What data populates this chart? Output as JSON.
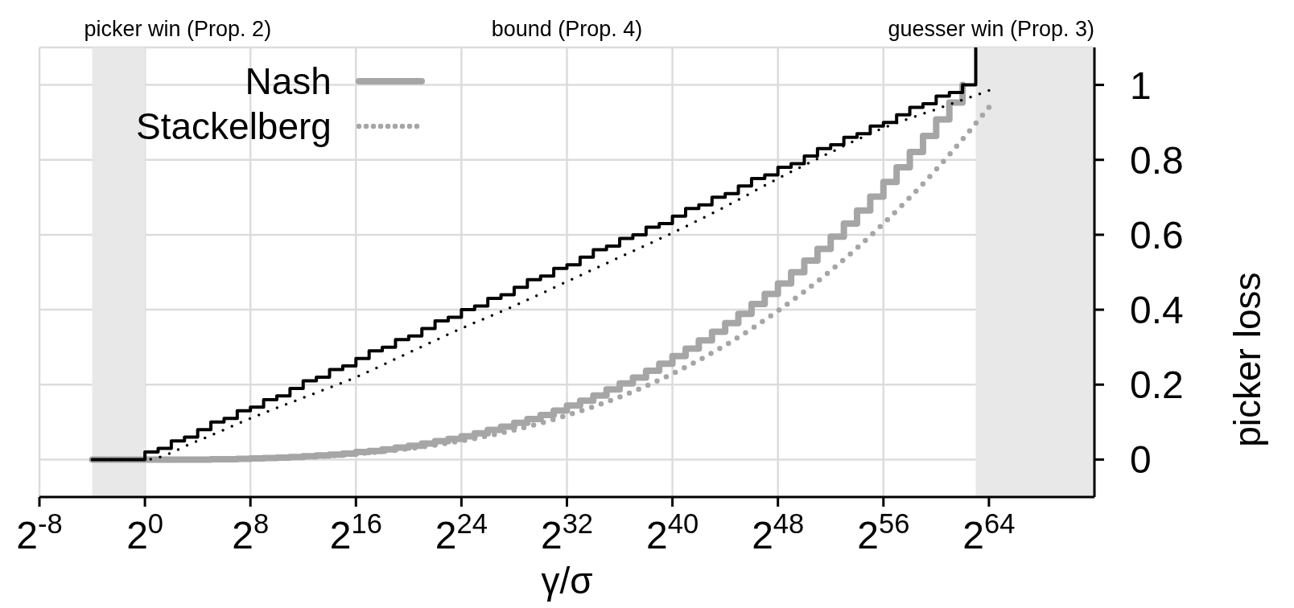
{
  "chart_data": {
    "type": "line",
    "xlabel": "γ/σ",
    "ylabel": "picker loss",
    "log": "x",
    "xlim": [
      0.00390625,
      4.722366482869645e+21
    ],
    "xticks": [
      {
        "value": 0.00390625,
        "label": "2$^{-8}$"
      },
      {
        "value": 1,
        "label": "2$^{0}$"
      },
      {
        "value": 256,
        "label": "2$^{8}$"
      },
      {
        "value": 65536,
        "label": "2$^{16}$"
      },
      {
        "value": 16777216,
        "label": "2$^{24}$"
      },
      {
        "value": 4294967296,
        "label": "2$^{32}$"
      },
      {
        "value": 1099511627776,
        "label": "2$^{40}$"
      },
      {
        "value": 281474976710656,
        "label": "2$^{48}$"
      },
      {
        "value": 7.205759403792794e+16,
        "label": "2$^{56}$"
      },
      {
        "value": 1.8446744073709552e+19,
        "label": "2$^{64}$"
      }
    ],
    "ylim": [
      -0.1,
      1.1
    ],
    "yticks": [
      0,
      0.2,
      0.4,
      0.6,
      0.8,
      1
    ],
    "grid": true,
    "legend": "top left",
    "bands": [
      {
        "axis": "x",
        "from": 0.0625,
        "to": 1,
        "label": "picker win (Prop. 2)",
        "color": "#e8e8e8"
      },
      {
        "axis": "x",
        "from": 9.223372036854776e+18,
        "to": 4.722366482869645e+21,
        "label": "guesser win (Prop. 3)",
        "color": "#e8e8e8"
      }
    ],
    "annotations": [
      "bound (Prop. 4)"
    ],
    "series": [
      {
        "type": "step",
        "color": "#000000",
        "line_style": "solid",
        "x": [
          0.0625,
          1,
          2,
          4,
          8,
          16,
          32,
          64,
          128,
          256,
          512,
          1024,
          2048,
          4096,
          8192,
          16384,
          32768,
          65536,
          131072,
          262144,
          524288,
          1048576,
          2097152,
          4194304,
          8388608,
          16777216,
          33554432,
          67108864,
          134217728,
          268435456,
          536870912,
          1073741824,
          2147483648,
          4294967296,
          8589934592,
          17179869184,
          34359738368,
          68719476736,
          137438953472,
          274877906944,
          549755813888,
          1099511627776,
          2199023255552,
          4398046511104,
          8796093022208,
          17592186044416,
          35184372088832,
          70368744177664,
          140737488355328,
          281474976710656,
          562949953421312,
          1125899906842624,
          2251799813685248,
          4503599627370496,
          9007199254740992,
          1.8014398509481984e+16,
          3.602879701896397e+16,
          7.205759403792794e+16,
          1.4411518807585587e+17,
          2.8823037615171174e+17,
          5.764607523034235e+17,
          1.152921504606847e+18,
          2.305843009213694e+18,
          4.611686018427388e+18,
          9.223372036854776e+18
        ],
        "values": [
          0,
          0.02,
          0.03,
          0.05,
          0.06,
          0.08,
          0.1,
          0.11,
          0.13,
          0.14,
          0.16,
          0.17,
          0.19,
          0.21,
          0.22,
          0.24,
          0.25,
          0.27,
          0.29,
          0.3,
          0.32,
          0.33,
          0.35,
          0.37,
          0.38,
          0.4,
          0.41,
          0.43,
          0.44,
          0.46,
          0.48,
          0.49,
          0.51,
          0.52,
          0.54,
          0.56,
          0.57,
          0.59,
          0.6,
          0.62,
          0.63,
          0.65,
          0.67,
          0.68,
          0.7,
          0.71,
          0.73,
          0.75,
          0.76,
          0.78,
          0.79,
          0.81,
          0.83,
          0.84,
          0.86,
          0.87,
          0.89,
          0.9,
          0.92,
          0.94,
          0.95,
          0.97,
          0.98,
          1.0,
          1.1
        ]
      },
      {
        "type": "line",
        "color": "#000000",
        "line_style": "dotted",
        "x": [
          0.0625,
          1,
          16,
          256,
          4096,
          65536,
          1048576,
          16777216,
          268435456,
          4294967296,
          68719476736,
          1099511627776,
          17592186044416,
          281474976710656,
          4503599627370496,
          7.205759403792794e+16,
          1.152921504606847e+18,
          1.8446744073709552e+19
        ],
        "values": [
          0,
          0,
          0.05,
          0.11,
          0.165,
          0.22,
          0.285,
          0.35,
          0.41,
          0.475,
          0.54,
          0.605,
          0.675,
          0.75,
          0.82,
          0.885,
          0.935,
          0.985
        ]
      },
      {
        "type": "step",
        "name": "Nash",
        "color": "#a6a6a6",
        "line_style": "solid",
        "x": [
          0.0625,
          1,
          2,
          4,
          8,
          16,
          32,
          64,
          128,
          256,
          512,
          1024,
          2048,
          4096,
          8192,
          16384,
          32768,
          65536,
          131072,
          262144,
          524288,
          1048576,
          2097152,
          4194304,
          8388608,
          16777216,
          33554432,
          67108864,
          134217728,
          268435456,
          536870912,
          1073741824,
          2147483648,
          4294967296,
          8589934592,
          17179869184,
          34359738368,
          68719476736,
          137438953472,
          274877906944,
          549755813888,
          1099511627776,
          2199023255552,
          4398046511104,
          8796093022208,
          17592186044416,
          35184372088832,
          70368744177664,
          140737488355328,
          281474976710656,
          562949953421312,
          1125899906842624,
          2251799813685248,
          4503599627370496,
          9007199254740992,
          1.8014398509481984e+16,
          3.602879701896397e+16,
          7.205759403792794e+16,
          1.4411518807585587e+17,
          2.8823037615171174e+17,
          5.764607523034235e+17,
          1.152921504606847e+18,
          2.305843009213694e+18,
          4.611686018427388e+18
        ],
        "values": [
          0,
          0,
          0,
          0,
          0,
          0,
          0.001,
          0.001,
          0.002,
          0.003,
          0.004,
          0.005,
          0.007,
          0.009,
          0.011,
          0.013,
          0.016,
          0.02,
          0.023,
          0.027,
          0.032,
          0.037,
          0.043,
          0.049,
          0.055,
          0.062,
          0.07,
          0.079,
          0.088,
          0.098,
          0.108,
          0.119,
          0.131,
          0.144,
          0.157,
          0.171,
          0.187,
          0.203,
          0.219,
          0.237,
          0.256,
          0.276,
          0.296,
          0.318,
          0.341,
          0.364,
          0.389,
          0.415,
          0.442,
          0.47,
          0.5,
          0.531,
          0.562,
          0.595,
          0.63,
          0.665,
          0.702,
          0.741,
          0.78,
          0.821,
          0.864,
          0.908,
          0.953,
          1.0
        ]
      },
      {
        "type": "line",
        "name": "Stackelberg",
        "color": "#a6a6a6",
        "line_style": "dotted",
        "x": [
          0.0625,
          1,
          16,
          256,
          4096,
          65536,
          1048576,
          16777216,
          268435456,
          4294967296,
          68719476736,
          1099511627776,
          17592186044416,
          281474976710656,
          4503599627370496,
          7.205759403792794e+16,
          1.152921504606847e+18,
          1.8446744073709552e+19
        ],
        "values": [
          0,
          0,
          0,
          0.002,
          0.006,
          0.015,
          0.029,
          0.05,
          0.079,
          0.118,
          0.167,
          0.229,
          0.305,
          0.397,
          0.504,
          0.63,
          0.774,
          0.94
        ]
      }
    ]
  }
}
